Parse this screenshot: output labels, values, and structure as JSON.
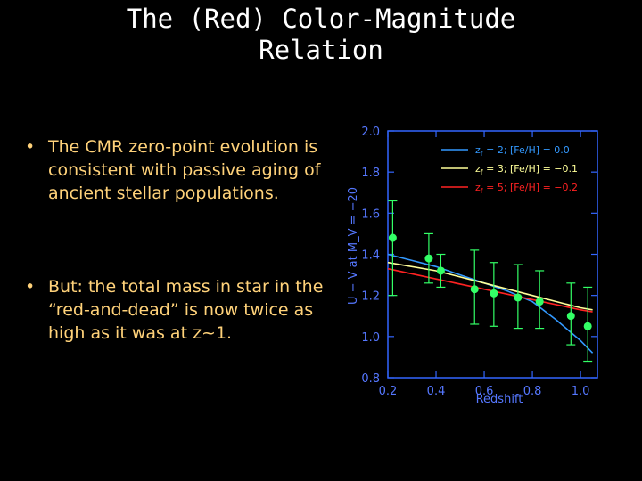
{
  "slide": {
    "title_line1": "The (Red) Color-Magnitude",
    "title_line2": "Relation",
    "bullets": [
      {
        "marker": "•",
        "text": "The CMR zero-point evolution is consistent with passive aging of ancient stellar populations."
      },
      {
        "marker": "•",
        "text": "But: the total mass in star in the “red-and-dead” is now twice as high as it was at z~1."
      }
    ]
  },
  "chart_data": {
    "type": "scatter",
    "xlabel": "Redshift",
    "ylabel": "U − V at M_V = −20",
    "xlim": [
      0.2,
      1.07
    ],
    "ylim": [
      0.8,
      2.0
    ],
    "xticks": [
      0.2,
      0.4,
      0.6,
      0.8,
      1.0
    ],
    "xtick_labels": [
      "0.2",
      "0.4",
      "0.6",
      "0.8",
      "1.0"
    ],
    "yticks": [
      0.8,
      1.0,
      1.2,
      1.4,
      1.6,
      1.8,
      2.0
    ],
    "ytick_labels": [
      "0.8",
      "1.0",
      "1.2",
      "1.4",
      "1.6",
      "1.8",
      "2.0"
    ],
    "legend_position": "top-right",
    "series": [
      {
        "name": "z_f = 2; [Fe/H] = 0.0",
        "legend_main": "z",
        "legend_sub": "f",
        "legend_rest": " = 2; [Fe/H] = 0.0",
        "color": "#3399ff",
        "kind": "line",
        "x": [
          0.2,
          0.3,
          0.4,
          0.5,
          0.6,
          0.7,
          0.8,
          0.9,
          1.0,
          1.05
        ],
        "y": [
          1.4,
          1.37,
          1.34,
          1.3,
          1.26,
          1.22,
          1.17,
          1.08,
          0.98,
          0.92
        ]
      },
      {
        "name": "z_f = 3; [Fe/H] = −0.1",
        "legend_main": "z",
        "legend_sub": "f",
        "legend_rest": " = 3; [Fe/H] = −0.1",
        "color": "#ffff99",
        "kind": "line",
        "x": [
          0.2,
          0.4,
          0.6,
          0.8,
          0.9,
          1.0,
          1.05
        ],
        "y": [
          1.36,
          1.32,
          1.26,
          1.2,
          1.17,
          1.14,
          1.13
        ]
      },
      {
        "name": "z_f = 5; [Fe/H] = −0.2",
        "legend_main": "z",
        "legend_sub": "f",
        "legend_rest": " = 5; [Fe/H] = −0.2",
        "color": "#ff2222",
        "kind": "line",
        "x": [
          0.2,
          0.4,
          0.6,
          0.8,
          1.0,
          1.05
        ],
        "y": [
          1.33,
          1.28,
          1.23,
          1.18,
          1.13,
          1.12
        ]
      },
      {
        "name": "data",
        "color": "#33ff66",
        "kind": "points",
        "x": [
          0.22,
          0.37,
          0.42,
          0.56,
          0.64,
          0.74,
          0.83,
          0.96,
          1.03
        ],
        "y": [
          1.48,
          1.38,
          1.32,
          1.23,
          1.21,
          1.19,
          1.17,
          1.1,
          1.05
        ],
        "yerr_low": [
          1.2,
          1.26,
          1.24,
          1.06,
          1.05,
          1.04,
          1.04,
          0.96,
          0.88
        ],
        "yerr_high": [
          1.66,
          1.5,
          1.4,
          1.42,
          1.36,
          1.35,
          1.32,
          1.26,
          1.24
        ]
      }
    ],
    "colors": {
      "axis": "#3366ff",
      "tick_label": "#5577ff",
      "axis_label": "#5577ff"
    }
  }
}
